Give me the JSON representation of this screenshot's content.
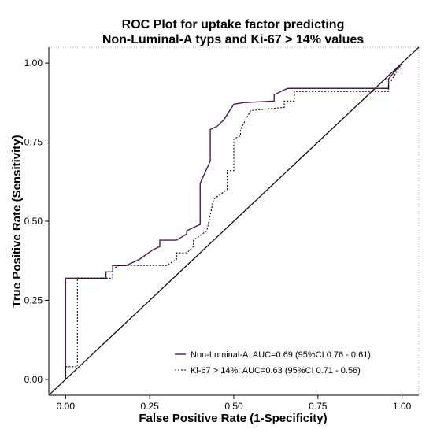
{
  "chart_data": {
    "type": "line",
    "title": "ROC Plot for uptake factor predicting",
    "subtitle": "Non-Luminal-A typs and Ki-67 > 14% values",
    "xlabel": "False Positive Rate (1-Specificity)",
    "ylabel": "True Positive Rate (Sensitivity)",
    "xlim": [
      -0.05,
      1.05
    ],
    "ylim": [
      -0.05,
      1.05
    ],
    "xticks": [
      "0.00",
      "0.25",
      "0.50",
      "0.75",
      "1.00"
    ],
    "yticks": [
      "0.00",
      "0.25",
      "0.50",
      "0.75",
      "1.00"
    ],
    "grid": false,
    "legend_position": "bottom-right",
    "reference_line": {
      "x": [
        -0.05,
        1.05
      ],
      "y": [
        -0.05,
        1.05
      ],
      "color": "#000000"
    },
    "series": [
      {
        "name": "Non-Luminal-A: AUC=0.69 (95%CI 0.76 - 0.61)",
        "style": "solid",
        "color": "#4a1f4a",
        "x": [
          0.0,
          0.0,
          0.12,
          0.12,
          0.14,
          0.14,
          0.18,
          0.22,
          0.26,
          0.28,
          0.28,
          0.33,
          0.36,
          0.36,
          0.4,
          0.4,
          0.43,
          0.43,
          0.45,
          0.47,
          0.5,
          0.53,
          0.62,
          0.62,
          0.66,
          0.96,
          0.96,
          1.0
        ],
        "y": [
          0.0,
          0.32,
          0.32,
          0.34,
          0.34,
          0.36,
          0.36,
          0.38,
          0.41,
          0.42,
          0.44,
          0.44,
          0.46,
          0.47,
          0.49,
          0.62,
          0.69,
          0.79,
          0.8,
          0.82,
          0.87,
          0.875,
          0.88,
          0.9,
          0.92,
          0.92,
          0.95,
          1.0
        ]
      },
      {
        "name": "Ki-67 > 14%: AUC=0.63 (95%CI 0.71 - 0.56)",
        "style": "dotted",
        "color": "#000000",
        "x": [
          0.0,
          0.0,
          0.035,
          0.035,
          0.14,
          0.14,
          0.16,
          0.3,
          0.33,
          0.33,
          0.36,
          0.38,
          0.38,
          0.42,
          0.44,
          0.48,
          0.48,
          0.5,
          0.5,
          0.52,
          0.52,
          0.55,
          0.65,
          0.65,
          0.68,
          0.68,
          0.96,
          0.96,
          1.0
        ],
        "y": [
          0.0,
          0.04,
          0.04,
          0.32,
          0.32,
          0.35,
          0.36,
          0.36,
          0.38,
          0.4,
          0.4,
          0.42,
          0.44,
          0.47,
          0.57,
          0.6,
          0.66,
          0.66,
          0.76,
          0.77,
          0.79,
          0.85,
          0.86,
          0.88,
          0.88,
          0.91,
          0.91,
          0.93,
          1.0
        ]
      }
    ]
  }
}
